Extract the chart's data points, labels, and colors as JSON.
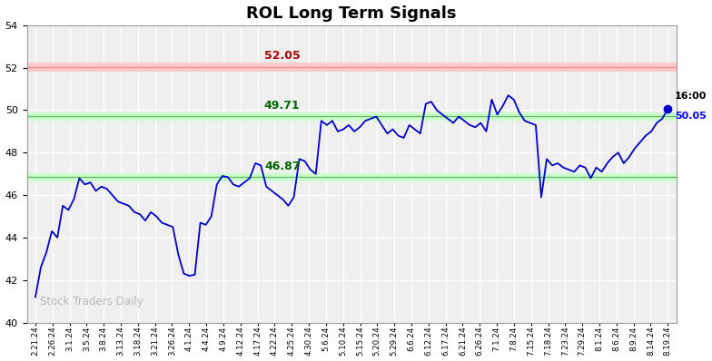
{
  "title": "ROL Long Term Signals",
  "watermark": "Stock Traders Daily",
  "ylim": [
    40,
    54
  ],
  "yticks": [
    40,
    42,
    44,
    46,
    48,
    50,
    52,
    54
  ],
  "hline_red": 52.05,
  "hline_green_upper": 49.71,
  "hline_green_lower": 46.87,
  "last_price": 50.05,
  "last_time": "16:00",
  "line_color": "#0000cc",
  "bg_color": "#efefef",
  "x_labels": [
    "2.21.24",
    "2.26.24",
    "3.1.24",
    "3.5.24",
    "3.8.24",
    "3.13.24",
    "3.18.24",
    "3.21.24",
    "3.26.24",
    "4.1.24",
    "4.4.24",
    "4.9.24",
    "4.12.24",
    "4.17.24",
    "4.22.24",
    "4.25.24",
    "4.30.24",
    "5.6.24",
    "5.10.24",
    "5.15.24",
    "5.20.24",
    "5.29.24",
    "6.6.24",
    "6.12.24",
    "6.17.24",
    "6.21.24",
    "6.26.24",
    "7.1.24",
    "7.8.24",
    "7.15.24",
    "7.18.24",
    "7.23.24",
    "7.29.24",
    "8.1.24",
    "8.6.24",
    "8.9.24",
    "8.14.24",
    "8.19.24"
  ],
  "y_values": [
    41.2,
    42.6,
    43.3,
    44.3,
    44.0,
    45.5,
    45.3,
    45.8,
    46.8,
    46.5,
    46.6,
    46.2,
    46.4,
    46.3,
    46.0,
    45.7,
    45.6,
    45.5,
    45.2,
    45.1,
    44.8,
    45.2,
    45.0,
    44.7,
    44.6,
    44.5,
    43.2,
    42.3,
    42.2,
    42.25,
    44.7,
    44.6,
    45.0,
    46.5,
    46.9,
    46.85,
    46.5,
    46.4,
    46.6,
    46.8,
    47.5,
    47.4,
    46.4,
    46.2,
    46.0,
    45.8,
    45.5,
    45.9,
    47.7,
    47.6,
    47.2,
    47.0,
    49.5,
    49.3,
    49.5,
    49.0,
    49.1,
    49.3,
    49.0,
    49.2,
    49.5,
    49.6,
    49.7,
    49.3,
    48.9,
    49.1,
    48.8,
    48.7,
    49.3,
    49.1,
    48.9,
    50.3,
    50.4,
    50.0,
    49.8,
    49.6,
    49.4,
    49.7,
    49.5,
    49.3,
    49.2,
    49.4,
    49.0,
    50.5,
    49.8,
    50.2,
    50.7,
    50.5,
    49.9,
    49.5,
    49.4,
    49.3,
    45.9,
    47.7,
    47.4,
    47.5,
    47.3,
    47.2,
    47.1,
    47.4,
    47.3,
    46.8,
    47.3,
    47.1,
    47.5,
    47.8,
    48.0,
    47.5,
    47.8,
    48.2,
    48.5,
    48.8,
    49.0,
    49.4,
    49.6,
    50.05
  ]
}
